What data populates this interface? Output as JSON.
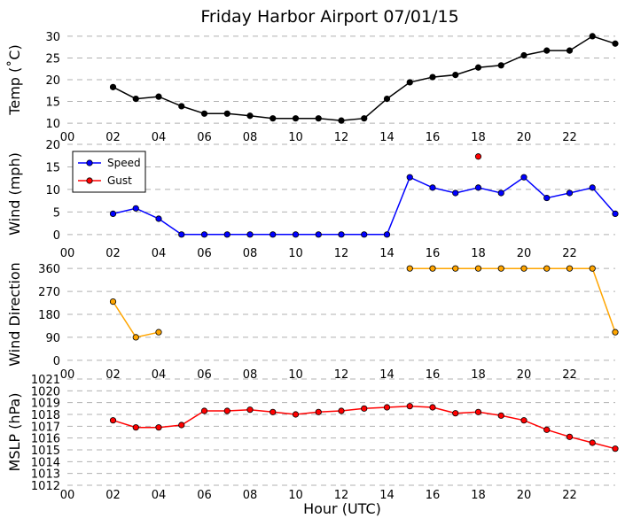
{
  "figure": {
    "title": "Friday Harbor Airport 07/01/15",
    "xlabel": "Hour (UTC)"
  },
  "chart_data": [
    {
      "type": "line",
      "ylabel": "Temp ($^\\circ$C)",
      "ylabel_display": "Temp (˚C)",
      "xlim": [
        0,
        24
      ],
      "ylim": [
        9,
        31
      ],
      "yticks": [
        10,
        15,
        20,
        25,
        30
      ],
      "xticks": [
        "00",
        "02",
        "04",
        "06",
        "08",
        "10",
        "12",
        "14",
        "16",
        "18",
        "20",
        "22"
      ],
      "grid": "y-dashed",
      "series": [
        {
          "color": "#000000",
          "x": [
            2,
            3,
            4,
            5,
            6,
            7,
            8,
            9,
            10,
            11,
            12,
            13,
            14,
            15,
            16,
            17,
            18,
            19,
            20,
            21,
            22,
            23,
            24
          ],
          "values": [
            18.3,
            15.6,
            16.1,
            13.9,
            12.2,
            12.2,
            11.7,
            11.1,
            11.1,
            11.1,
            10.6,
            11.1,
            15.6,
            19.4,
            20.6,
            21.1,
            22.8,
            23.3,
            25.6,
            26.7,
            26.7,
            30.0,
            28.3
          ]
        }
      ]
    },
    {
      "type": "line",
      "ylabel": "Wind (mph)",
      "xlim": [
        0,
        24
      ],
      "ylim": [
        -2,
        20
      ],
      "yticks": [
        0,
        5,
        10,
        15,
        20
      ],
      "xticks": [
        "00",
        "02",
        "04",
        "06",
        "08",
        "10",
        "12",
        "14",
        "16",
        "18",
        "20",
        "22"
      ],
      "grid": "y-dashed",
      "legend": "upper-left",
      "series": [
        {
          "name": "Speed",
          "color": "#0000ff",
          "x": [
            2,
            3,
            4,
            5,
            6,
            7,
            8,
            9,
            10,
            11,
            12,
            13,
            14,
            15,
            16,
            17,
            18,
            19,
            20,
            21,
            22,
            23,
            24
          ],
          "values": [
            4.6,
            5.8,
            3.5,
            0,
            0,
            0,
            0,
            0,
            0,
            0,
            0,
            0,
            0,
            12.7,
            10.4,
            9.2,
            10.4,
            9.2,
            12.7,
            8.1,
            9.2,
            10.4,
            4.6
          ]
        },
        {
          "name": "Gust",
          "color": "#ff0000",
          "x": [
            18
          ],
          "values": [
            17.3
          ]
        }
      ]
    },
    {
      "type": "line",
      "ylabel": "Wind Direction",
      "xlim": [
        0,
        24
      ],
      "ylim": [
        -18,
        378
      ],
      "yticks": [
        0,
        90,
        180,
        270,
        360
      ],
      "xticks": [
        "00",
        "02",
        "04",
        "06",
        "08",
        "10",
        "12",
        "14",
        "16",
        "18",
        "20",
        "22"
      ],
      "grid": "y-dashed",
      "series": [
        {
          "color": "#ffa500",
          "segments": [
            {
              "x": [
                2,
                3,
                4
              ],
              "values": [
                230,
                90,
                110
              ]
            },
            {
              "x": [
                15,
                16,
                17,
                18,
                19,
                20,
                21,
                22,
                23,
                24
              ],
              "values": [
                360,
                360,
                360,
                360,
                360,
                360,
                360,
                360,
                360,
                110
              ]
            }
          ]
        }
      ]
    },
    {
      "type": "line",
      "ylabel": "MSLP (hPa)",
      "xlim": [
        0,
        24
      ],
      "ylim": [
        1012,
        1021
      ],
      "yticks": [
        1012,
        1013,
        1014,
        1015,
        1016,
        1017,
        1018,
        1019,
        1020,
        1021
      ],
      "xticks": [
        "00",
        "02",
        "04",
        "06",
        "08",
        "10",
        "12",
        "14",
        "16",
        "18",
        "20",
        "22"
      ],
      "grid": "y-dashed",
      "series": [
        {
          "color": "#ff0000",
          "x": [
            2,
            3,
            4,
            5,
            6,
            7,
            8,
            9,
            10,
            11,
            12,
            13,
            14,
            15,
            16,
            17,
            18,
            19,
            20,
            21,
            22,
            23,
            24
          ],
          "values": [
            1017.5,
            1016.9,
            1016.9,
            1017.1,
            1018.3,
            1018.3,
            1018.4,
            1018.2,
            1018.0,
            1018.2,
            1018.3,
            1018.5,
            1018.6,
            1018.7,
            1018.6,
            1018.1,
            1018.2,
            1017.9,
            1017.5,
            1016.7,
            1016.1,
            1015.6,
            1015.1
          ]
        }
      ]
    }
  ]
}
